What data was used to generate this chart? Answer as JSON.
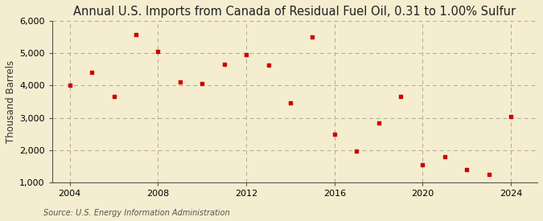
{
  "title": "Annual U.S. Imports from Canada of Residual Fuel Oil, 0.31 to 1.00% Sulfur",
  "ylabel": "Thousand Barrels",
  "source": "Source: U.S. Energy Information Administration",
  "background_color": "#f5edcf",
  "marker_color": "#cc0000",
  "years": [
    2004,
    2005,
    2006,
    2007,
    2008,
    2009,
    2010,
    2011,
    2012,
    2013,
    2014,
    2015,
    2016,
    2017,
    2018,
    2019,
    2020,
    2021,
    2022,
    2023,
    2024
  ],
  "values": [
    4010,
    4400,
    3650,
    5580,
    5050,
    4110,
    4060,
    4650,
    4950,
    4620,
    3450,
    5500,
    2500,
    1960,
    2850,
    3660,
    1550,
    1800,
    1400,
    1250,
    3050
  ],
  "xlim": [
    2003.2,
    2025.2
  ],
  "ylim": [
    1000,
    6000
  ],
  "yticks": [
    1000,
    2000,
    3000,
    4000,
    5000,
    6000
  ],
  "xticks": [
    2004,
    2008,
    2012,
    2016,
    2020,
    2024
  ],
  "grid_color": "#b0a898",
  "title_fontsize": 10.5,
  "label_fontsize": 8.5,
  "tick_fontsize": 8,
  "source_fontsize": 7
}
